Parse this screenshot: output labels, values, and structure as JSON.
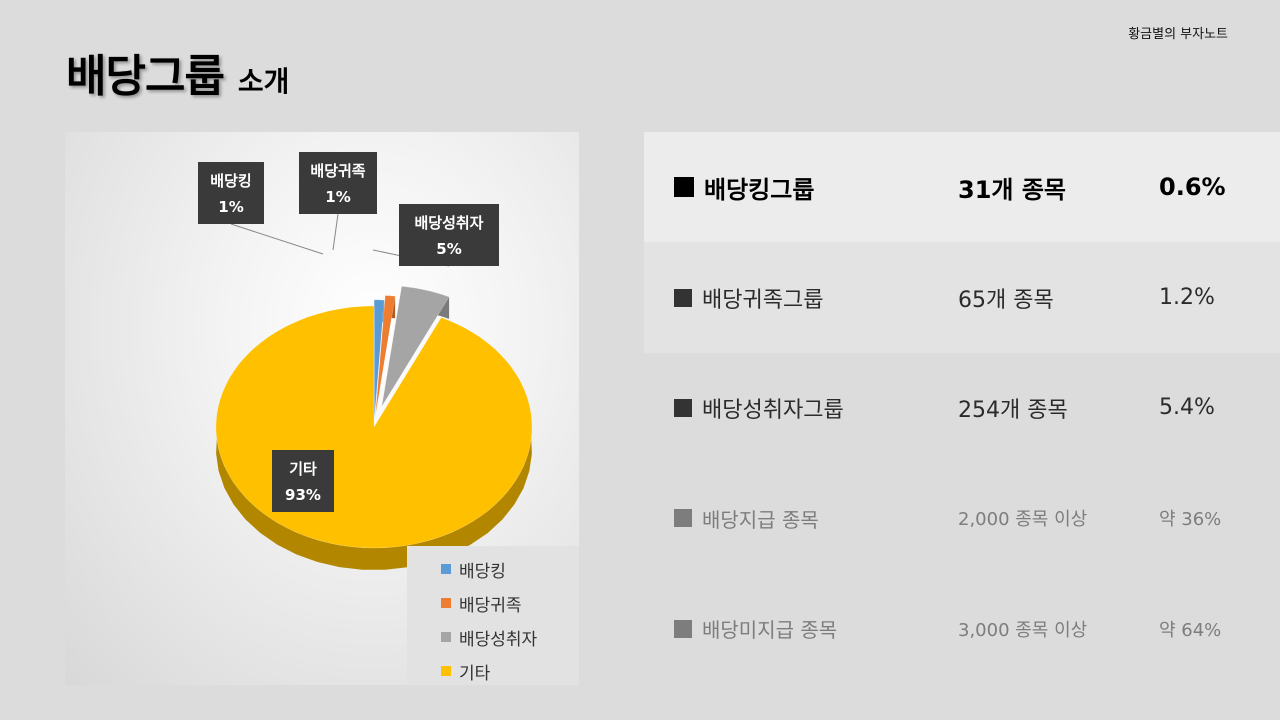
{
  "brand": "황금별의 부자노트",
  "title": {
    "main": "배당그룹",
    "sub": "소개"
  },
  "chart_data": {
    "type": "pie",
    "categories": [
      "배당킹",
      "배당귀족",
      "배당성취자",
      "기타"
    ],
    "values": [
      1,
      1,
      5,
      93
    ],
    "value_labels": [
      "1%",
      "1%",
      "5%",
      "93%"
    ],
    "colors": [
      "#5b9bd5",
      "#ed7d31",
      "#a5a5a5",
      "#ffc000"
    ],
    "exploded": true,
    "legend_position": "bottom-right",
    "legend": [
      "배당킹",
      "배당귀족",
      "배당성취자",
      "기타"
    ]
  },
  "table": {
    "rows": [
      {
        "name": "배당킹그룹",
        "count": "31개 종목",
        "pct": "0.6%"
      },
      {
        "name": "배당귀족그룹",
        "count": "65개 종목",
        "pct": "1.2%"
      },
      {
        "name": "배당성취자그룹",
        "count": "254개 종목",
        "pct": "5.4%"
      },
      {
        "name": "배당지급 종목",
        "count": "2,000 종목 이상",
        "pct": "약 36%"
      },
      {
        "name": "배당미지급 종목",
        "count": "3,000 종목 이상",
        "pct": "약 64%"
      }
    ]
  }
}
